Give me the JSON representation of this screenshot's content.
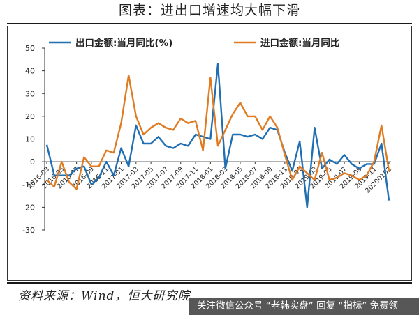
{
  "header": {
    "title": "图表：进出口增速均大幅下滑"
  },
  "footer": {
    "source": "资料来源：Wind，恒大研究院"
  },
  "watermark": {
    "text": "关注微信公众号 “老韩实盘” 回复 “指标” 免费领"
  },
  "chart_data": {
    "type": "line",
    "title": "图表：进出口增速均大幅下滑",
    "ylim": [
      -30,
      50
    ],
    "yticks": [
      -30,
      -20,
      -10,
      0,
      10,
      20,
      30,
      40,
      50
    ],
    "xtick_labels": [
      "2016-03",
      "2016-05",
      "2016-07",
      "2016-09",
      "2016-11",
      "2017-01",
      "2017-03",
      "2017-05",
      "2017-07",
      "2017-09",
      "2017-11",
      "2018-01",
      "2018-03",
      "2018-05",
      "2018-07",
      "2018-09",
      "2018-11",
      "2019-01",
      "2019-03",
      "2019-05",
      "2019-07",
      "2019-09",
      "2019-11",
      "20200102"
    ],
    "x": [
      "2016-03",
      "2016-04",
      "2016-05",
      "2016-06",
      "2016-07",
      "2016-08",
      "2016-09",
      "2016-10",
      "2016-11",
      "2016-12",
      "2017-01",
      "2017-02",
      "2017-03",
      "2017-04",
      "2017-05",
      "2017-06",
      "2017-07",
      "2017-08",
      "2017-09",
      "2017-10",
      "2017-11",
      "2017-12",
      "2018-01",
      "2018-02",
      "2018-03",
      "2018-04",
      "2018-05",
      "2018-06",
      "2018-07",
      "2018-08",
      "2018-09",
      "2018-10",
      "2018-11",
      "2018-12",
      "2019-01",
      "2019-02",
      "2019-03",
      "2019-04",
      "2019-05",
      "2019-06",
      "2019-07",
      "2019-08",
      "2019-09",
      "2019-10",
      "2019-11",
      "2019-12",
      "20200102"
    ],
    "series": [
      {
        "name": "出口金额:当月同比(%)",
        "color": "#1f6fb2",
        "values": [
          7.5,
          -6,
          -6,
          -6,
          -3,
          -2,
          -10,
          -7,
          0,
          -6,
          6,
          -2,
          16,
          8,
          8,
          11,
          7,
          6,
          8,
          7,
          12,
          11,
          10,
          43,
          -3,
          12,
          12,
          11,
          12,
          10,
          15,
          14,
          4,
          -4,
          9,
          -20,
          15,
          -3,
          1,
          -1,
          3,
          -1,
          -3,
          -1,
          -1,
          8,
          -17
        ]
      },
      {
        "name": "进口金额:当月同比",
        "color": "#e07b22",
        "values": [
          -8,
          -11,
          0,
          -9,
          -12,
          2,
          -2,
          -2,
          5,
          4,
          17,
          38,
          20,
          12,
          15,
          17,
          15,
          14,
          19,
          17,
          18,
          5,
          37,
          7,
          14,
          21,
          26,
          20,
          20,
          14,
          20,
          15,
          3,
          -8,
          -2,
          -5,
          -8,
          4,
          -8,
          -7,
          -5,
          -6,
          -8,
          -6,
          0,
          16,
          -4
        ]
      }
    ],
    "legend_position": "top",
    "grid": false
  }
}
